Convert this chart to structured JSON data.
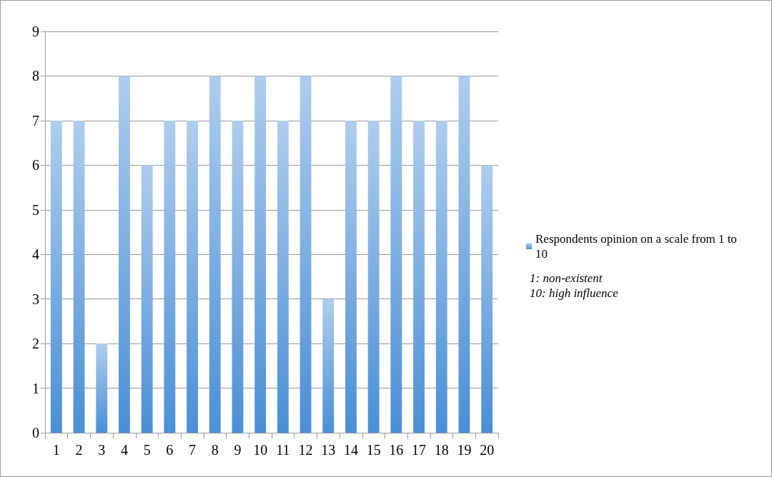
{
  "chart_data": {
    "type": "bar",
    "categories": [
      "1",
      "2",
      "3",
      "4",
      "5",
      "6",
      "7",
      "8",
      "9",
      "10",
      "11",
      "12",
      "13",
      "14",
      "15",
      "16",
      "17",
      "18",
      "19",
      "20"
    ],
    "series": [
      {
        "name": "Respondents opinion on a scale from 1 to 10",
        "color": "#4a8fd6",
        "values": [
          7,
          7,
          2,
          8,
          6,
          7,
          7,
          8,
          7,
          8,
          7,
          8,
          3,
          7,
          7,
          8,
          7,
          7,
          8,
          6
        ]
      }
    ],
    "ylim": [
      0,
      9
    ],
    "yticks": [
      0,
      1,
      2,
      3,
      4,
      5,
      6,
      7,
      8,
      9
    ],
    "grid": "y",
    "legend": "right",
    "annotations": [
      "1: non-existent",
      "10: high influence"
    ]
  }
}
